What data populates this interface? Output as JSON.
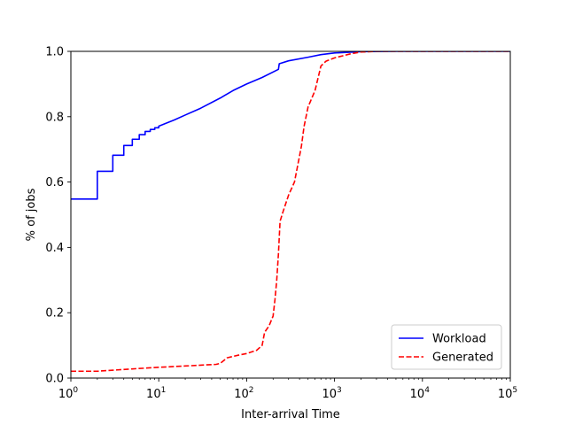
{
  "chart_data": {
    "type": "line",
    "title": "",
    "xlabel": "Inter-arrival Time",
    "ylabel": "% of jobs",
    "xscale": "log",
    "xlim": [
      1,
      100000
    ],
    "ylim": [
      0,
      1
    ],
    "xticks": [
      {
        "value": 1,
        "base": "10",
        "exp": "0"
      },
      {
        "value": 10,
        "base": "10",
        "exp": "1"
      },
      {
        "value": 100,
        "base": "10",
        "exp": "2"
      },
      {
        "value": 1000,
        "base": "10",
        "exp": "3"
      },
      {
        "value": 10000,
        "base": "10",
        "exp": "4"
      },
      {
        "value": 100000,
        "base": "10",
        "exp": "5"
      }
    ],
    "yticks": [
      {
        "value": 0,
        "label": "0.0"
      },
      {
        "value": 0.2,
        "label": "0.2"
      },
      {
        "value": 0.4,
        "label": "0.4"
      },
      {
        "value": 0.6,
        "label": "0.6"
      },
      {
        "value": 0.8,
        "label": "0.8"
      },
      {
        "value": 1,
        "label": "1.0"
      }
    ],
    "grid": false,
    "legend_position": "lower-right",
    "series": [
      {
        "name": "Workload",
        "color": "#0000ff",
        "style": "solid",
        "points": [
          [
            1,
            0.548
          ],
          [
            2,
            0.548
          ],
          [
            2,
            0.633
          ],
          [
            3,
            0.633
          ],
          [
            3,
            0.682
          ],
          [
            4,
            0.682
          ],
          [
            4,
            0.712
          ],
          [
            5,
            0.712
          ],
          [
            5,
            0.731
          ],
          [
            6,
            0.731
          ],
          [
            6,
            0.745
          ],
          [
            7,
            0.745
          ],
          [
            7,
            0.755
          ],
          [
            8,
            0.755
          ],
          [
            8,
            0.761
          ],
          [
            9,
            0.761
          ],
          [
            9,
            0.766
          ],
          [
            10,
            0.766
          ],
          [
            10,
            0.771
          ],
          [
            15,
            0.79
          ],
          [
            20,
            0.805
          ],
          [
            30,
            0.826
          ],
          [
            50,
            0.857
          ],
          [
            70,
            0.88
          ],
          [
            100,
            0.9
          ],
          [
            150,
            0.92
          ],
          [
            230,
            0.945
          ],
          [
            235,
            0.962
          ],
          [
            300,
            0.971
          ],
          [
            500,
            0.982
          ],
          [
            700,
            0.99
          ],
          [
            1000,
            0.995
          ],
          [
            2000,
            0.999
          ],
          [
            5000,
            1.0
          ],
          [
            100000,
            1.0
          ]
        ]
      },
      {
        "name": "Generated",
        "color": "#ff0000",
        "style": "dashed",
        "points": [
          [
            1,
            0.021
          ],
          [
            2,
            0.021
          ],
          [
            5,
            0.028
          ],
          [
            10,
            0.033
          ],
          [
            20,
            0.037
          ],
          [
            45,
            0.042
          ],
          [
            50,
            0.045
          ],
          [
            60,
            0.062
          ],
          [
            80,
            0.07
          ],
          [
            100,
            0.075
          ],
          [
            130,
            0.085
          ],
          [
            150,
            0.1
          ],
          [
            160,
            0.14
          ],
          [
            180,
            0.16
          ],
          [
            200,
            0.19
          ],
          [
            210,
            0.24
          ],
          [
            220,
            0.3
          ],
          [
            230,
            0.38
          ],
          [
            240,
            0.48
          ],
          [
            260,
            0.51
          ],
          [
            300,
            0.56
          ],
          [
            350,
            0.6
          ],
          [
            400,
            0.68
          ],
          [
            420,
            0.71
          ],
          [
            450,
            0.77
          ],
          [
            500,
            0.83
          ],
          [
            600,
            0.88
          ],
          [
            700,
            0.955
          ],
          [
            800,
            0.97
          ],
          [
            1000,
            0.98
          ],
          [
            1500,
            0.992
          ],
          [
            2000,
            0.998
          ],
          [
            3000,
            1.0
          ],
          [
            100000,
            1.0
          ]
        ]
      }
    ]
  }
}
